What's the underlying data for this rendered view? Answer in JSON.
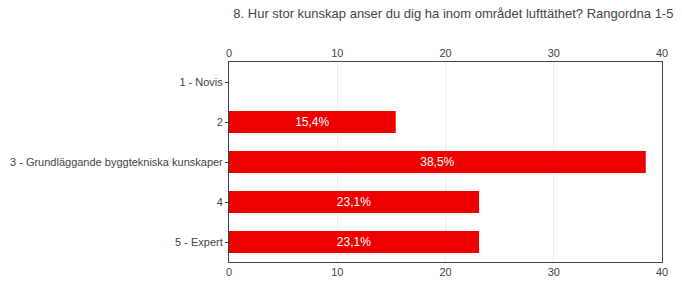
{
  "chart_data": {
    "type": "bar",
    "orientation": "horizontal",
    "title": "8. Hur stor kunskap anser du dig ha inom området lufttäthet? Rangordna 1-5",
    "categories": [
      "1 - Novis",
      "2",
      "3 - Grundläggande byggtekniska kunskaper",
      "4",
      "5 - Expert"
    ],
    "values": [
      0,
      15.4,
      38.5,
      23.1,
      23.1
    ],
    "value_labels": [
      null,
      "15,4%",
      "38,5%",
      "23,1%",
      "23,1%"
    ],
    "data_labels": true,
    "color": "#ee0000",
    "xlim": [
      0,
      40
    ],
    "xticks": [
      0,
      10,
      20,
      30,
      40
    ],
    "grid": true
  }
}
